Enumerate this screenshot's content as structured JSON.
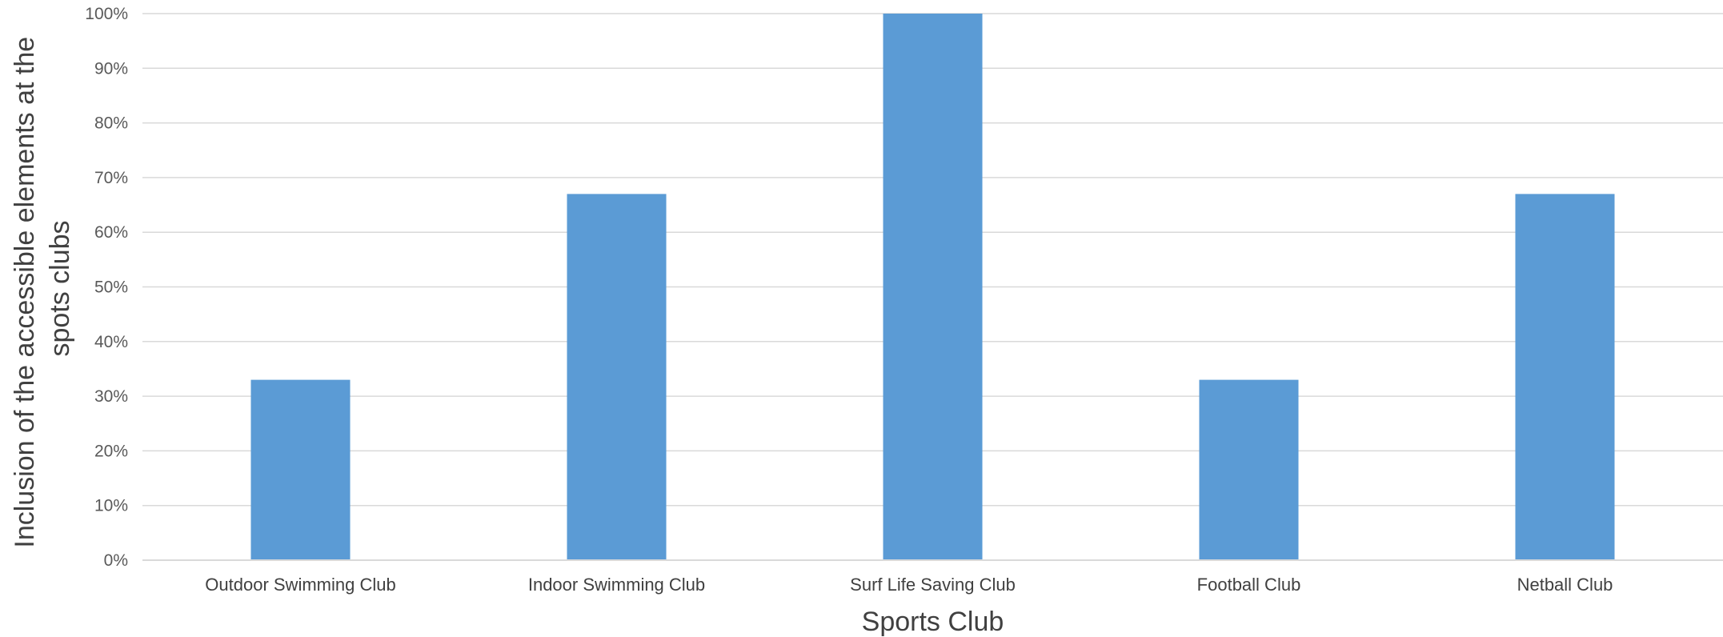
{
  "chart_data": {
    "type": "bar",
    "categories": [
      "Outdoor Swimming Club",
      "Indoor Swimming Club",
      "Surf Life Saving Club",
      "Football Club",
      "Netball Club"
    ],
    "values": [
      33,
      67,
      100,
      33,
      67
    ],
    "title": "",
    "xlabel": "Sports Club",
    "ylabel_lines": [
      "Inclusion of the accessible elements at the",
      "spots clubs"
    ],
    "ylim": [
      0,
      100
    ],
    "yticks": [
      "0%",
      "10%",
      "20%",
      "30%",
      "40%",
      "50%",
      "60%",
      "70%",
      "80%",
      "90%",
      "100%"
    ],
    "bar_color": "#5b9bd5",
    "grid": true,
    "legend": "none"
  }
}
